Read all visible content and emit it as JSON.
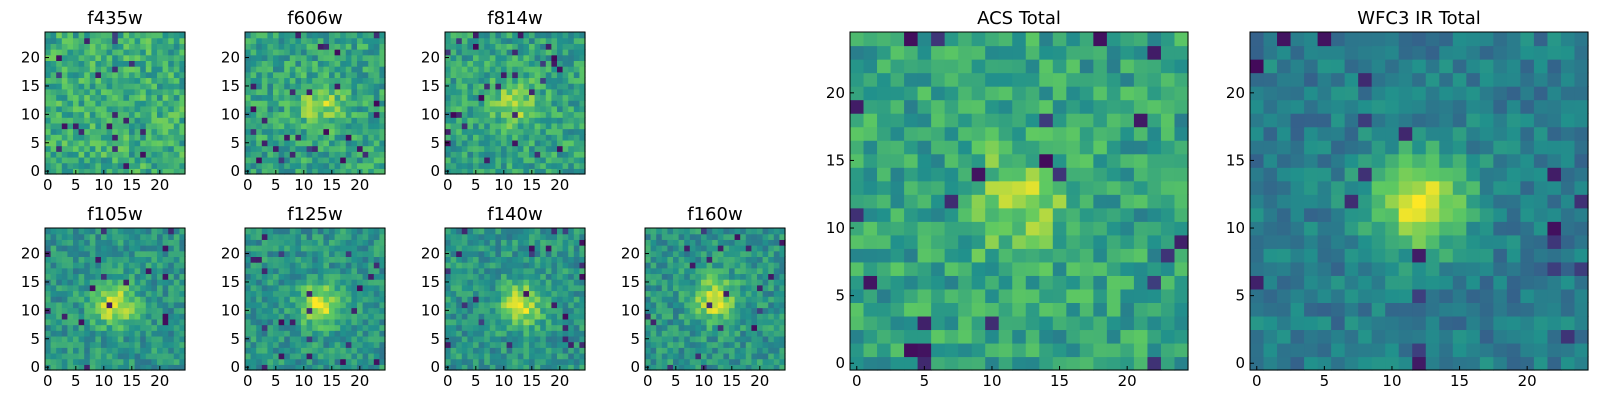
{
  "figure_title": "",
  "colormap": "viridis",
  "colormap_stops": [
    "#440154",
    "#3b528b",
    "#21918c",
    "#5ec962",
    "#fde725"
  ],
  "chart_data": [
    {
      "type": "heatmap",
      "name": "f435w",
      "title": "f435w",
      "grid_size": 25,
      "xticks": [
        "0",
        "5",
        "10",
        "15",
        "20"
      ],
      "yticks": [
        "0",
        "5",
        "10",
        "15",
        "20"
      ],
      "xlim": [
        -0.5,
        24.5
      ],
      "ylim": [
        -0.5,
        24.5
      ],
      "structure": "noise",
      "center": [
        12,
        12
      ],
      "seed": 11
    },
    {
      "type": "heatmap",
      "name": "f606w",
      "title": "f606w",
      "grid_size": 25,
      "xticks": [
        "0",
        "5",
        "10",
        "15",
        "20"
      ],
      "yticks": [
        "0",
        "5",
        "10",
        "15",
        "20"
      ],
      "xlim": [
        -0.5,
        24.5
      ],
      "ylim": [
        -0.5,
        24.5
      ],
      "structure": "faint-source",
      "center": [
        13,
        12
      ],
      "seed": 22
    },
    {
      "type": "heatmap",
      "name": "f814w",
      "title": "f814w",
      "grid_size": 25,
      "xticks": [
        "0",
        "5",
        "10",
        "15",
        "20"
      ],
      "yticks": [
        "0",
        "5",
        "10",
        "15",
        "20"
      ],
      "xlim": [
        -0.5,
        24.5
      ],
      "ylim": [
        -0.5,
        24.5
      ],
      "structure": "faint-source",
      "center": [
        12,
        12
      ],
      "seed": 33
    },
    {
      "type": "heatmap",
      "name": "f105w",
      "title": "f105w",
      "grid_size": 25,
      "xticks": [
        "0",
        "5",
        "10",
        "15",
        "20"
      ],
      "yticks": [
        "0",
        "5",
        "10",
        "15",
        "20"
      ],
      "xlim": [
        -0.5,
        24.5
      ],
      "ylim": [
        -0.5,
        24.5
      ],
      "structure": "source",
      "center": [
        12,
        11
      ],
      "seed": 44
    },
    {
      "type": "heatmap",
      "name": "f125w",
      "title": "f125w",
      "grid_size": 25,
      "xticks": [
        "0",
        "5",
        "10",
        "15",
        "20"
      ],
      "yticks": [
        "0",
        "5",
        "10",
        "15",
        "20"
      ],
      "xlim": [
        -0.5,
        24.5
      ],
      "ylim": [
        -0.5,
        24.5
      ],
      "structure": "source",
      "center": [
        13,
        11
      ],
      "seed": 55
    },
    {
      "type": "heatmap",
      "name": "f140w",
      "title": "f140w",
      "grid_size": 25,
      "xticks": [
        "0",
        "5",
        "10",
        "15",
        "20"
      ],
      "yticks": [
        "0",
        "5",
        "10",
        "15",
        "20"
      ],
      "xlim": [
        -0.5,
        24.5
      ],
      "ylim": [
        -0.5,
        24.5
      ],
      "structure": "source",
      "center": [
        13,
        11
      ],
      "seed": 66
    },
    {
      "type": "heatmap",
      "name": "f160w",
      "title": "f160w",
      "grid_size": 25,
      "xticks": [
        "0",
        "5",
        "10",
        "15",
        "20"
      ],
      "yticks": [
        "0",
        "5",
        "10",
        "15",
        "20"
      ],
      "xlim": [
        -0.5,
        24.5
      ],
      "ylim": [
        -0.5,
        24.5
      ],
      "structure": "source",
      "center": [
        12,
        12
      ],
      "seed": 77
    },
    {
      "type": "heatmap",
      "name": "acs-total",
      "title": "ACS Total",
      "grid_size": 25,
      "xticks": [
        "0",
        "5",
        "10",
        "15",
        "20"
      ],
      "yticks": [
        "0",
        "5",
        "10",
        "15",
        "20"
      ],
      "xlim": [
        -0.5,
        24.5
      ],
      "ylim": [
        -0.5,
        24.5
      ],
      "structure": "faint-source",
      "center": [
        12,
        12
      ],
      "seed": 88
    },
    {
      "type": "heatmap",
      "name": "wfc3-ir-total",
      "title": "WFC3 IR Total",
      "grid_size": 25,
      "xticks": [
        "0",
        "5",
        "10",
        "15",
        "20"
      ],
      "yticks": [
        "0",
        "5",
        "10",
        "15",
        "20"
      ],
      "xlim": [
        -0.5,
        24.5
      ],
      "ylim": [
        -0.5,
        24.5
      ],
      "structure": "strong-source",
      "center": [
        12,
        12
      ],
      "seed": 99
    }
  ]
}
